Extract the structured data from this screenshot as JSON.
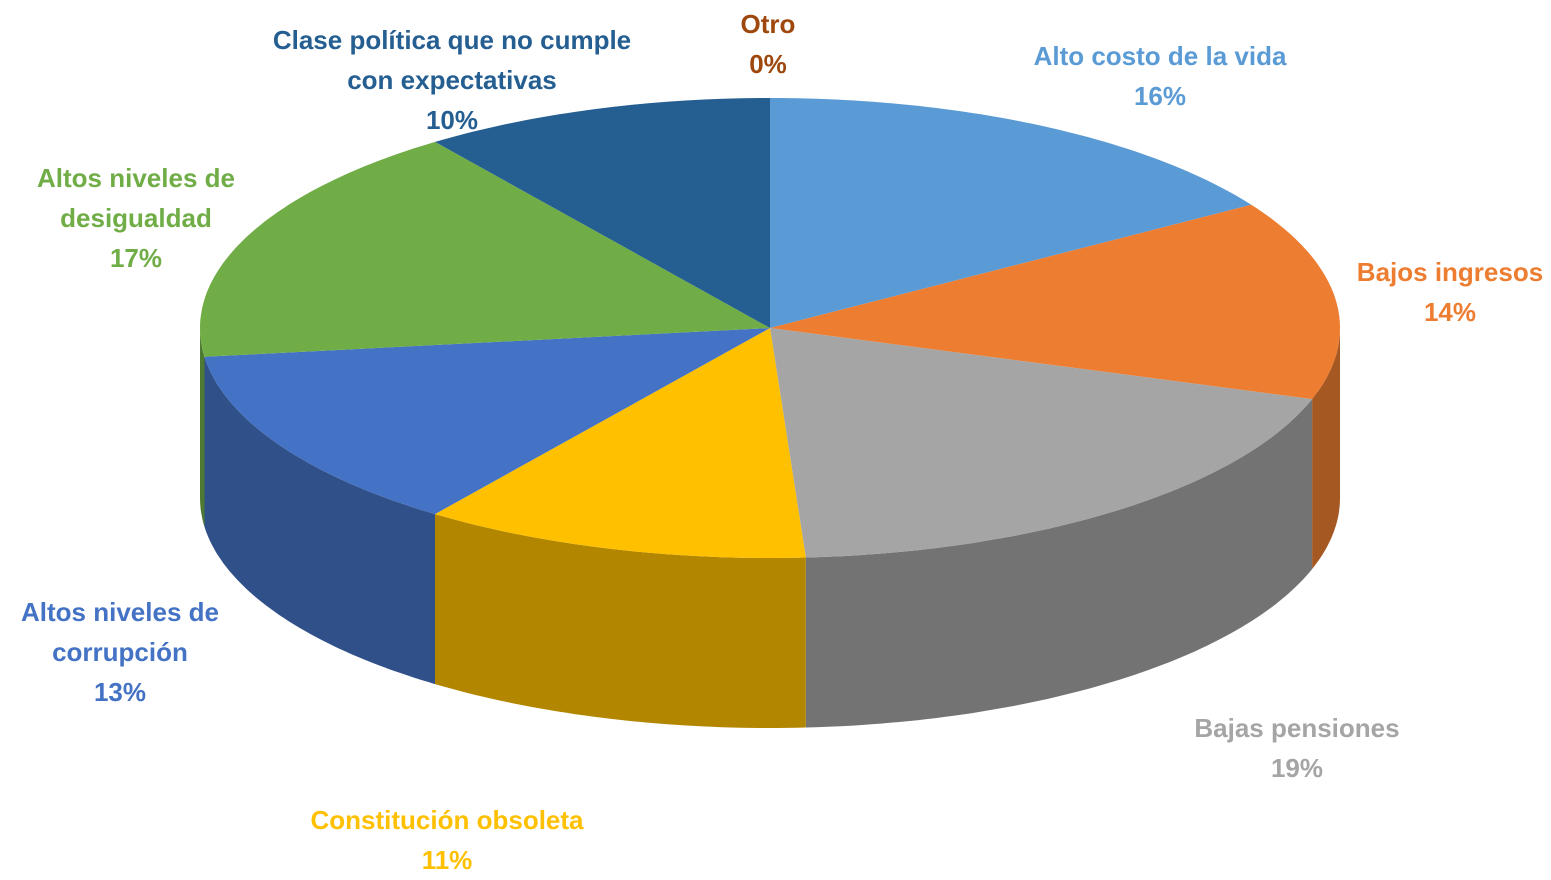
{
  "chart_data": {
    "type": "pie",
    "categories": [
      "Alto costo de la vida",
      "Bajos ingresos",
      "Bajas pensiones",
      "Constitución obsoleta",
      "Altos niveles de corrupción",
      "Altos niveles de desigualdad",
      "Clase política que no cumple con expectativas",
      "Otro"
    ],
    "values": [
      16,
      14,
      19,
      11,
      13,
      17,
      10,
      0
    ],
    "value_labels": [
      "16%",
      "14%",
      "19%",
      "11%",
      "13%",
      "17%",
      "10%",
      "0%"
    ],
    "colors": [
      "#5b9bd5",
      "#ed7d31",
      "#a5a5a5",
      "#ffc000",
      "#4472c4",
      "#70ad47",
      "#255e91",
      "#9e480e"
    ]
  }
}
